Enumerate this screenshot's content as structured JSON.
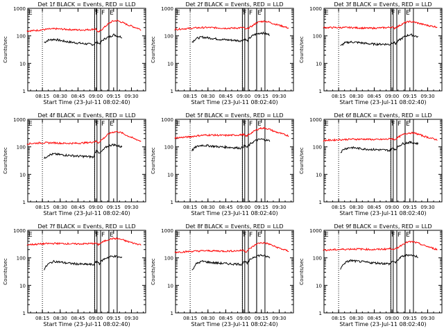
{
  "page": {
    "background": "#ffffff"
  },
  "colors": {
    "events": "#000000",
    "lld": "#ff0000",
    "axes": "#000000"
  },
  "shared": {
    "ylabel": "Counts/sec",
    "xlabel": "Start Time (23-Jul-11 08:02:40)",
    "ylim": [
      1,
      1000
    ],
    "yscale": "log",
    "ytick_labels": [
      "1",
      "10",
      "100",
      "1000"
    ],
    "xlim": [
      "08:02:40",
      "09:42:00"
    ],
    "xtick_labels": [
      "08:15",
      "08:30",
      "08:45",
      "09:00",
      "09:15",
      "09:30"
    ],
    "xtick_minutes": [
      15,
      30,
      45,
      60,
      75,
      90
    ],
    "xlim_minutes": [
      2.67,
      102.0
    ],
    "data_start_minutes": 16.5,
    "dotted_marker_minutes": [
      15.0,
      59.0
    ],
    "grid": false
  },
  "chart_data": [
    {
      "type": "line",
      "title": "Det 1f BLACK = Events, RED = LLD",
      "ylabel": "Counts/sec",
      "xlabel": "Start Time (23-Jul-11 08:02:40)",
      "ylim": [
        1,
        1000
      ],
      "yscale": "log",
      "markers": [
        {
          "label": "F",
          "start_minute": 59.0,
          "end_minute": 60.8
        },
        {
          "label": "F",
          "start_minute": 64.0,
          "end_minute": 71.0
        },
        {
          "label": "E",
          "start_minute": 71.0,
          "end_minute": 78.0
        }
      ],
      "series": [
        {
          "color": "#000000",
          "x": [
            16,
            20,
            25,
            30,
            35,
            40,
            45,
            50,
            55,
            58,
            61,
            63,
            66,
            69,
            72,
            75,
            78,
            82
          ],
          "values": [
            55,
            70,
            75,
            68,
            62,
            58,
            55,
            52,
            50,
            48,
            60,
            52,
            70,
            85,
            95,
            110,
            100,
            90
          ]
        },
        {
          "color": "#ff0000",
          "x": [
            2,
            8,
            14,
            20,
            26,
            32,
            38,
            44,
            50,
            56,
            60,
            62,
            65,
            68,
            71,
            74,
            78,
            82,
            86,
            92,
            98
          ],
          "values": [
            150,
            155,
            165,
            175,
            180,
            175,
            170,
            165,
            165,
            170,
            180,
            130,
            170,
            220,
            280,
            340,
            360,
            310,
            260,
            210,
            170
          ]
        }
      ]
    },
    {
      "type": "line",
      "title": "Det 2f BLACK = Events, RED = LLD",
      "ylabel": "Counts/sec",
      "xlabel": "Start Time (23-Jul-11 08:02:40)",
      "ylim": [
        1,
        1000
      ],
      "yscale": "log",
      "markers": [
        {
          "label": "F",
          "start_minute": 59.0,
          "end_minute": 61.0
        },
        {
          "label": "F",
          "start_minute": 64.0,
          "end_minute": 71.0
        },
        {
          "label": "E",
          "start_minute": 71.0,
          "end_minute": 78.0
        }
      ],
      "series": [
        {
          "color": "#000000",
          "x": [
            16,
            20,
            25,
            30,
            35,
            40,
            45,
            50,
            55,
            58,
            61,
            63,
            66,
            69,
            72,
            75,
            78,
            82
          ],
          "values": [
            55,
            80,
            90,
            85,
            80,
            75,
            72,
            70,
            68,
            66,
            75,
            65,
            90,
            110,
            120,
            130,
            120,
            110
          ]
        },
        {
          "color": "#ff0000",
          "x": [
            2,
            8,
            14,
            20,
            26,
            32,
            38,
            44,
            50,
            56,
            60,
            62,
            65,
            68,
            71,
            74,
            78,
            82,
            86,
            92,
            98
          ],
          "values": [
            170,
            180,
            185,
            195,
            200,
            200,
            195,
            190,
            190,
            195,
            200,
            170,
            200,
            240,
            300,
            330,
            340,
            310,
            270,
            230,
            190
          ]
        }
      ]
    },
    {
      "type": "line",
      "title": "Det 3f BLACK = Events, RED = LLD",
      "ylabel": "Counts/sec",
      "xlabel": "Start Time (23-Jul-11 08:02:40)",
      "ylim": [
        1,
        1000
      ],
      "yscale": "log",
      "markers": [
        {
          "label": "F",
          "start_minute": 59.0,
          "end_minute": 61.0
        },
        {
          "label": "F",
          "start_minute": 64.0,
          "end_minute": 71.0
        },
        {
          "label": "E",
          "start_minute": 71.0,
          "end_minute": 78.0
        }
      ],
      "series": [
        {
          "color": "#000000",
          "x": [
            16,
            20,
            25,
            30,
            35,
            40,
            45,
            50,
            55,
            58,
            61,
            63,
            66,
            69,
            72,
            75,
            78,
            82
          ],
          "values": [
            40,
            55,
            60,
            58,
            55,
            52,
            50,
            50,
            50,
            48,
            60,
            52,
            70,
            85,
            100,
            110,
            105,
            90
          ]
        },
        {
          "color": "#ff0000",
          "x": [
            2,
            8,
            14,
            20,
            26,
            32,
            38,
            44,
            50,
            56,
            60,
            62,
            65,
            68,
            71,
            74,
            78,
            82,
            86,
            92,
            98
          ],
          "values": [
            200,
            200,
            200,
            200,
            200,
            195,
            190,
            190,
            195,
            200,
            210,
            190,
            220,
            260,
            300,
            330,
            320,
            290,
            260,
            230,
            210
          ]
        }
      ]
    },
    {
      "type": "line",
      "title": "Det 4f BLACK = Events, RED = LLD",
      "ylabel": "Counts/sec",
      "xlabel": "Start Time (23-Jul-11 08:02:40)",
      "ylim": [
        1,
        1000
      ],
      "yscale": "log",
      "markers": [
        {
          "label": "F",
          "start_minute": 59.0,
          "end_minute": 61.0
        },
        {
          "label": "F",
          "start_minute": 64.0,
          "end_minute": 71.0
        },
        {
          "label": "E",
          "start_minute": 71.0,
          "end_minute": 78.0
        }
      ],
      "series": [
        {
          "color": "#000000",
          "x": [
            16,
            20,
            25,
            30,
            35,
            40,
            45,
            50,
            55,
            58,
            61,
            63,
            66,
            69,
            72,
            75,
            78,
            82
          ],
          "values": [
            35,
            50,
            55,
            52,
            50,
            48,
            46,
            45,
            44,
            42,
            80,
            55,
            75,
            100,
            115,
            120,
            110,
            100
          ]
        },
        {
          "color": "#ff0000",
          "x": [
            2,
            8,
            14,
            20,
            26,
            32,
            38,
            44,
            50,
            56,
            60,
            62,
            65,
            68,
            71,
            74,
            78,
            82,
            86,
            92,
            98
          ],
          "values": [
            130,
            135,
            140,
            140,
            140,
            135,
            135,
            135,
            140,
            145,
            160,
            140,
            180,
            230,
            300,
            340,
            360,
            320,
            260,
            200,
            160
          ]
        }
      ]
    },
    {
      "type": "line",
      "title": "Det 5f BLACK = Events, RED = LLD",
      "ylabel": "Counts/sec",
      "xlabel": "Start Time (23-Jul-11 08:02:40)",
      "ylim": [
        1,
        1000
      ],
      "yscale": "log",
      "markers": [
        {
          "label": "F",
          "start_minute": 59.0,
          "end_minute": 61.0
        },
        {
          "label": "F",
          "start_minute": 64.0,
          "end_minute": 71.0
        },
        {
          "label": "E",
          "start_minute": 71.0,
          "end_minute": 78.0
        }
      ],
      "series": [
        {
          "color": "#000000",
          "x": [
            16,
            20,
            25,
            30,
            35,
            40,
            45,
            50,
            55,
            58,
            61,
            63,
            66,
            69,
            72,
            75,
            78,
            82
          ],
          "values": [
            70,
            100,
            115,
            110,
            105,
            100,
            98,
            95,
            92,
            90,
            110,
            95,
            130,
            160,
            180,
            190,
            180,
            165
          ]
        },
        {
          "color": "#ff0000",
          "x": [
            2,
            8,
            14,
            20,
            26,
            32,
            38,
            44,
            50,
            56,
            60,
            62,
            65,
            68,
            71,
            74,
            78,
            82,
            86,
            92,
            98
          ],
          "values": [
            210,
            220,
            230,
            250,
            265,
            270,
            265,
            260,
            265,
            270,
            280,
            240,
            290,
            350,
            420,
            470,
            480,
            430,
            360,
            300,
            250
          ]
        }
      ]
    },
    {
      "type": "line",
      "title": "Det 6f BLACK = Events, RED = LLD",
      "ylabel": "Counts/sec",
      "xlabel": "Start Time (23-Jul-11 08:02:40)",
      "ylim": [
        1,
        1000
      ],
      "yscale": "log",
      "markers": [
        {
          "label": "F",
          "start_minute": 59.0,
          "end_minute": 61.0
        },
        {
          "label": "F",
          "start_minute": 64.0,
          "end_minute": 71.0
        },
        {
          "label": "E",
          "start_minute": 71.0,
          "end_minute": 78.0
        }
      ],
      "series": [
        {
          "color": "#000000",
          "x": [
            16,
            20,
            25,
            30,
            35,
            40,
            45,
            50,
            55,
            58,
            61,
            63,
            66,
            69,
            72,
            75,
            78,
            82
          ],
          "values": [
            60,
            85,
            95,
            90,
            85,
            82,
            80,
            78,
            76,
            74,
            90,
            80,
            110,
            130,
            140,
            145,
            140,
            130
          ]
        },
        {
          "color": "#ff0000",
          "x": [
            2,
            8,
            14,
            20,
            26,
            32,
            38,
            44,
            50,
            56,
            60,
            62,
            65,
            68,
            71,
            74,
            78,
            82,
            86,
            92,
            98
          ],
          "values": [
            170,
            175,
            180,
            185,
            190,
            190,
            190,
            185,
            185,
            190,
            200,
            180,
            220,
            260,
            300,
            320,
            320,
            290,
            250,
            210,
            180
          ]
        }
      ]
    },
    {
      "type": "line",
      "title": "Det 7f BLACK = Events, RED = LLD",
      "ylabel": "Counts/sec",
      "xlabel": "Start Time (23-Jul-11 08:02:40)",
      "ylim": [
        1,
        1000
      ],
      "yscale": "log",
      "markers": [
        {
          "label": "F",
          "start_minute": 59.0,
          "end_minute": 61.0
        },
        {
          "label": "F",
          "start_minute": 64.0,
          "end_minute": 71.0
        },
        {
          "label": "E",
          "start_minute": 71.0,
          "end_minute": 78.0
        }
      ],
      "series": [
        {
          "color": "#000000",
          "x": [
            16,
            20,
            25,
            30,
            35,
            40,
            45,
            50,
            55,
            58,
            61,
            63,
            66,
            69,
            72,
            75,
            78,
            82
          ],
          "values": [
            35,
            60,
            75,
            70,
            65,
            62,
            60,
            58,
            58,
            56,
            75,
            62,
            85,
            100,
            110,
            115,
            110,
            100
          ]
        },
        {
          "color": "#ff0000",
          "x": [
            2,
            8,
            14,
            20,
            26,
            32,
            38,
            44,
            50,
            56,
            60,
            62,
            65,
            68,
            71,
            74,
            78,
            82,
            86,
            92,
            98
          ],
          "values": [
            300,
            310,
            320,
            330,
            335,
            330,
            325,
            320,
            325,
            330,
            340,
            300,
            360,
            420,
            470,
            500,
            500,
            460,
            400,
            340,
            300
          ]
        }
      ]
    },
    {
      "type": "line",
      "title": "Det 8f BLACK = Events, RED = LLD",
      "ylabel": "Counts/sec",
      "xlabel": "Start Time (23-Jul-11 08:02:40)",
      "ylim": [
        1,
        1000
      ],
      "yscale": "log",
      "markers": [
        {
          "label": "F",
          "start_minute": 59.0,
          "end_minute": 61.0
        },
        {
          "label": "F",
          "start_minute": 64.0,
          "end_minute": 71.0
        },
        {
          "label": "E",
          "start_minute": 71.0,
          "end_minute": 78.0
        }
      ],
      "series": [
        {
          "color": "#000000",
          "x": [
            16,
            20,
            25,
            30,
            35,
            40,
            45,
            50,
            55,
            58,
            61,
            63,
            66,
            69,
            72,
            75,
            78,
            82
          ],
          "values": [
            30,
            60,
            75,
            70,
            66,
            64,
            62,
            60,
            60,
            58,
            75,
            62,
            90,
            110,
            120,
            125,
            115,
            105
          ]
        },
        {
          "color": "#ff0000",
          "x": [
            2,
            8,
            14,
            20,
            26,
            32,
            38,
            44,
            50,
            56,
            60,
            62,
            65,
            68,
            71,
            74,
            78,
            82,
            86,
            92,
            98
          ],
          "values": [
            160,
            165,
            170,
            175,
            180,
            180,
            178,
            175,
            178,
            182,
            190,
            165,
            210,
            260,
            320,
            350,
            350,
            310,
            260,
            210,
            175
          ]
        }
      ]
    },
    {
      "type": "line",
      "title": "Det 9f BLACK = Events, RED = LLD",
      "ylabel": "Counts/sec",
      "xlabel": "Start Time (23-Jul-11 08:02:40)",
      "ylim": [
        1,
        1000
      ],
      "yscale": "log",
      "markers": [
        {
          "label": "F",
          "start_minute": 59.0,
          "end_minute": 61.0
        },
        {
          "label": "F",
          "start_minute": 64.0,
          "end_minute": 71.0
        },
        {
          "label": "E",
          "start_minute": 71.0,
          "end_minute": 78.0
        }
      ],
      "series": [
        {
          "color": "#000000",
          "x": [
            16,
            20,
            25,
            30,
            35,
            40,
            45,
            50,
            55,
            58,
            61,
            63,
            66,
            69,
            72,
            75,
            78,
            82
          ],
          "values": [
            35,
            65,
            80,
            75,
            72,
            68,
            66,
            64,
            62,
            60,
            78,
            65,
            95,
            115,
            125,
            130,
            120,
            110
          ]
        },
        {
          "color": "#ff0000",
          "x": [
            2,
            8,
            14,
            20,
            26,
            32,
            38,
            44,
            50,
            56,
            60,
            62,
            65,
            68,
            71,
            74,
            78,
            82,
            86,
            92,
            98
          ],
          "values": [
            190,
            195,
            200,
            205,
            210,
            210,
            205,
            200,
            205,
            210,
            220,
            195,
            240,
            290,
            350,
            380,
            380,
            340,
            290,
            240,
            200
          ]
        }
      ]
    }
  ]
}
